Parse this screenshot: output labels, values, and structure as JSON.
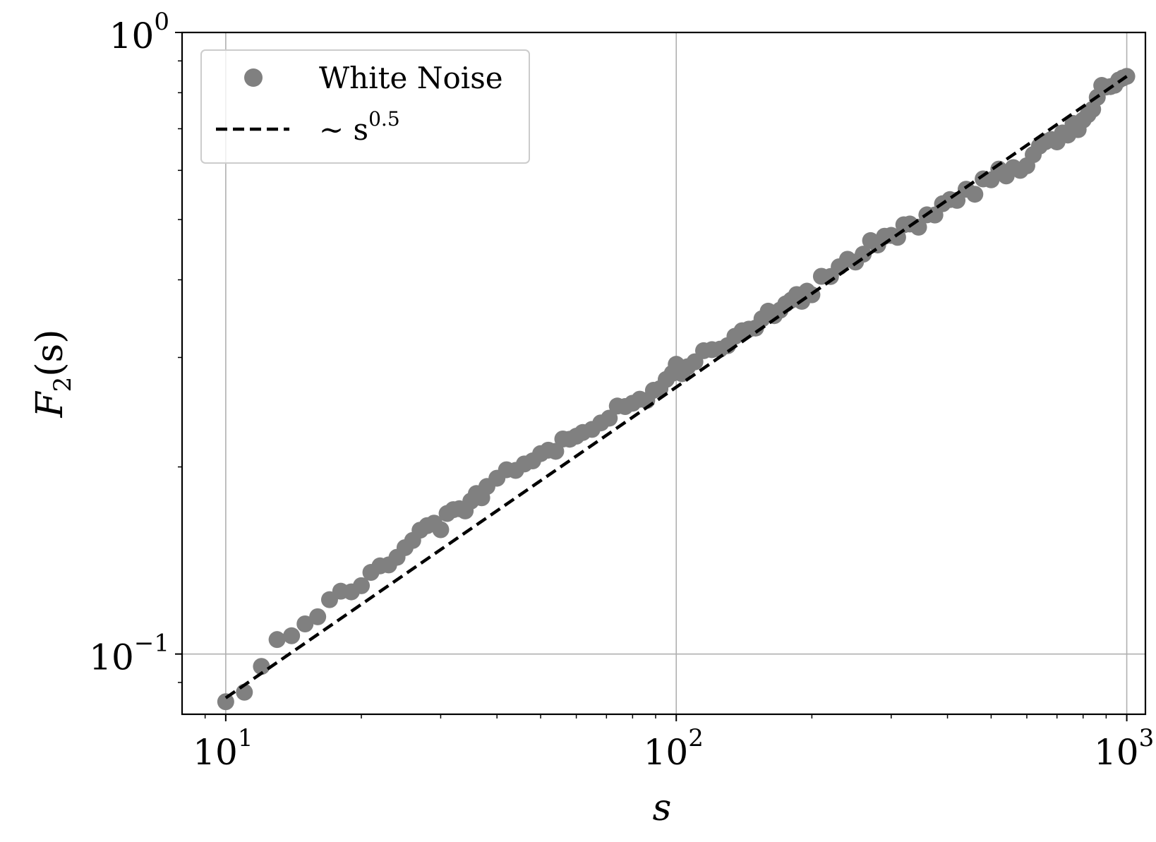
{
  "chart_data": {
    "type": "scatter",
    "scale": {
      "x": "log",
      "y": "log"
    },
    "xlabel": "s",
    "ylabel": "F_2(s)",
    "ylabel_parts": {
      "main": "F",
      "sub": "2",
      "rest": "(s)"
    },
    "xlim": [
      8,
      1100
    ],
    "ylim": [
      0.08,
      1.0
    ],
    "grid": true,
    "legend_position": "top-left",
    "x_ticks": [
      {
        "base": "10",
        "exp": "1",
        "value": 10
      },
      {
        "base": "10",
        "exp": "2",
        "value": 100
      },
      {
        "base": "10",
        "exp": "3",
        "value": 1000
      }
    ],
    "y_ticks": [
      {
        "base": "10",
        "exp": "−1",
        "value": 0.1
      },
      {
        "base": "10",
        "exp": "0",
        "value": 1
      }
    ],
    "series": [
      {
        "name": "White Noise",
        "kind": "scatter",
        "color": "#808080",
        "points": [
          [
            10,
            0.0838
          ],
          [
            11,
            0.0868
          ],
          [
            12,
            0.0955
          ],
          [
            13,
            0.1055
          ],
          [
            14,
            0.107
          ],
          [
            15,
            0.1118
          ],
          [
            16,
            0.1148
          ],
          [
            17,
            0.1223
          ],
          [
            18,
            0.1262
          ],
          [
            19,
            0.1259
          ],
          [
            20,
            0.1288
          ],
          [
            21,
            0.1353
          ],
          [
            22,
            0.1386
          ],
          [
            23,
            0.1391
          ],
          [
            24,
            0.1431
          ],
          [
            25,
            0.1483
          ],
          [
            26,
            0.1523
          ],
          [
            27,
            0.1582
          ],
          [
            28,
            0.1609
          ],
          [
            29,
            0.1624
          ],
          [
            30,
            0.1585
          ],
          [
            31,
            0.1683
          ],
          [
            32,
            0.1707
          ],
          [
            33,
            0.1713
          ],
          [
            34,
            0.1699
          ],
          [
            35,
            0.1762
          ],
          [
            36,
            0.1812
          ],
          [
            37,
            0.1784
          ],
          [
            38,
            0.186
          ],
          [
            40,
            0.1918
          ],
          [
            42,
            0.1979
          ],
          [
            44,
            0.1974
          ],
          [
            46,
            0.2022
          ],
          [
            48,
            0.2045
          ],
          [
            50,
            0.2101
          ],
          [
            52,
            0.2128
          ],
          [
            54,
            0.2119
          ],
          [
            56,
            0.2218
          ],
          [
            58,
            0.2216
          ],
          [
            60,
            0.2241
          ],
          [
            62,
            0.2272
          ],
          [
            65,
            0.2298
          ],
          [
            68,
            0.2354
          ],
          [
            71,
            0.2396
          ],
          [
            74,
            0.2506
          ],
          [
            77,
            0.2501
          ],
          [
            80,
            0.2532
          ],
          [
            83,
            0.257
          ],
          [
            86,
            0.2558
          ],
          [
            89,
            0.2656
          ],
          [
            92,
            0.2672
          ],
          [
            95,
            0.2766
          ],
          [
            98,
            0.2829
          ],
          [
            100,
            0.2925
          ],
          [
            103,
            0.2825
          ],
          [
            106,
            0.2899
          ],
          [
            110,
            0.2952
          ],
          [
            115,
            0.3076
          ],
          [
            120,
            0.3088
          ],
          [
            125,
            0.3093
          ],
          [
            130,
            0.3134
          ],
          [
            135,
            0.3245
          ],
          [
            140,
            0.3312
          ],
          [
            145,
            0.3332
          ],
          [
            150,
            0.3345
          ],
          [
            155,
            0.3463
          ],
          [
            160,
            0.3561
          ],
          [
            165,
            0.3503
          ],
          [
            170,
            0.3574
          ],
          [
            175,
            0.3659
          ],
          [
            180,
            0.371
          ],
          [
            185,
            0.3787
          ],
          [
            190,
            0.3694
          ],
          [
            195,
            0.3835
          ],
          [
            200,
            0.3784
          ],
          [
            210,
            0.4052
          ],
          [
            220,
            0.4049
          ],
          [
            230,
            0.4198
          ],
          [
            240,
            0.4316
          ],
          [
            250,
            0.4272
          ],
          [
            260,
            0.4398
          ],
          [
            270,
            0.4625
          ],
          [
            280,
            0.4551
          ],
          [
            290,
            0.47
          ],
          [
            300,
            0.4715
          ],
          [
            310,
            0.4682
          ],
          [
            320,
            0.4904
          ],
          [
            330,
            0.4918
          ],
          [
            345,
            0.4861
          ],
          [
            360,
            0.5088
          ],
          [
            375,
            0.5085
          ],
          [
            390,
            0.5302
          ],
          [
            405,
            0.5384
          ],
          [
            420,
            0.5369
          ],
          [
            440,
            0.5595
          ],
          [
            460,
            0.5492
          ],
          [
            480,
            0.5813
          ],
          [
            500,
            0.5793
          ],
          [
            520,
            0.6028
          ],
          [
            540,
            0.5877
          ],
          [
            560,
            0.6062
          ],
          [
            580,
            0.6
          ],
          [
            600,
            0.6103
          ],
          [
            620,
            0.6359
          ],
          [
            640,
            0.6564
          ],
          [
            660,
            0.6672
          ],
          [
            680,
            0.6726
          ],
          [
            700,
            0.6668
          ],
          [
            720,
            0.6891
          ],
          [
            740,
            0.6839
          ],
          [
            760,
            0.7139
          ],
          [
            780,
            0.6977
          ],
          [
            800,
            0.723
          ],
          [
            820,
            0.7373
          ],
          [
            840,
            0.7523
          ],
          [
            860,
            0.7865
          ],
          [
            880,
            0.8218
          ],
          [
            900,
            0.817
          ],
          [
            920,
            0.8183
          ],
          [
            940,
            0.8224
          ],
          [
            960,
            0.8383
          ],
          [
            980,
            0.8448
          ],
          [
            1000,
            0.8499
          ]
        ]
      },
      {
        "name": "∼ s",
        "name_exponent": "0.5",
        "kind": "line",
        "style": "dashed",
        "color": "#000000",
        "x": [
          10,
          1000
        ],
        "y": [
          0.085,
          0.85
        ]
      }
    ]
  }
}
